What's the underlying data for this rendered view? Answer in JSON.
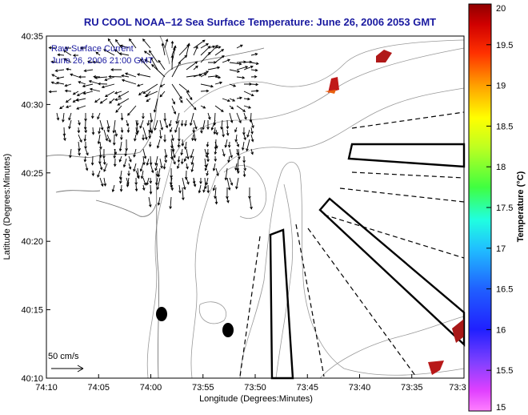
{
  "title": "RU COOL   NOAA–12  Sea Surface Temperature:  June 26, 2006 2053 GMT",
  "annotations": {
    "raw_label": "Raw Surface Current",
    "raw_date": "June 26, 2006 21:00 GMT",
    "scale_label": "50 cm/s"
  },
  "axes": {
    "xlabel": "Longitude (Degrees:Minutes)",
    "ylabel": "Latitude (Degrees:Minutes)",
    "xticks": [
      "74:10",
      "74:05",
      "74:00",
      "73:55",
      "73:50",
      "73:45",
      "73:40",
      "73:35",
      "73:3"
    ],
    "yticks": [
      "40:10",
      "40:15",
      "40:20",
      "40:25",
      "40:30",
      "40:35"
    ]
  },
  "colorbar": {
    "label": "Temperature (°C)",
    "ticks": [
      "15",
      "15.5",
      "16",
      "16.5",
      "17",
      "17.5",
      "18",
      "18.5",
      "19",
      "19.5",
      "20"
    ],
    "range": [
      15,
      20
    ]
  },
  "colors": {
    "title": "#1a1aa0",
    "land": "#ffffff",
    "contour": "#999999",
    "sst_warm": "#b01818",
    "sst_orange": "#e86010"
  },
  "chart_data": {
    "type": "map",
    "x_range_deg": [
      -74.1667,
      -73.5333
    ],
    "y_range_deg": [
      40.1667,
      40.5833
    ],
    "sst_patches": [
      {
        "lon": -73.617,
        "lat": 40.552,
        "temp_c": 20
      },
      {
        "lon": -73.708,
        "lat": 40.508,
        "temp_c": 19.5
      },
      {
        "lon": -73.545,
        "lat": 40.205,
        "temp_c": 20
      },
      {
        "lon": -73.575,
        "lat": 40.175,
        "temp_c": 20
      }
    ],
    "current_source": {
      "lon": -73.99,
      "lat": 40.512
    },
    "scale_vector_cm_s": 50
  }
}
